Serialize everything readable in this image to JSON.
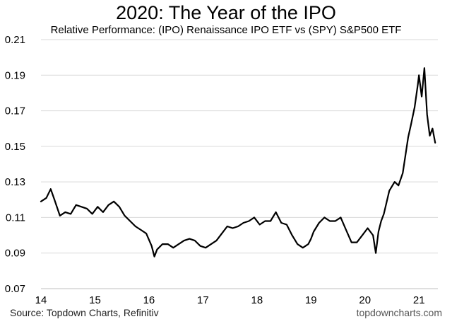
{
  "chart_data": {
    "type": "line",
    "title": "2020: The Year of the IPO",
    "subtitle": "Relative Performance: (IPO) Renaissance IPO ETF vs (SPY) S&P500 ETF",
    "xlabel": "",
    "ylabel": "",
    "ylim": [
      0.07,
      0.21
    ],
    "yticks": [
      "0.21",
      "0.19",
      "0.17",
      "0.15",
      "0.13",
      "0.11",
      "0.09",
      "0.07"
    ],
    "xlim": [
      14.0,
      21.35
    ],
    "xticks": [
      "14",
      "15",
      "16",
      "17",
      "18",
      "19",
      "20",
      "21"
    ],
    "grid": "horizontal",
    "series": [
      {
        "x": [
          14.0,
          14.1,
          14.18,
          14.25,
          14.35,
          14.45,
          14.55,
          14.65,
          14.75,
          14.85,
          14.95,
          15.05,
          15.15,
          15.25,
          15.35,
          15.45,
          15.55,
          15.65,
          15.75,
          15.85,
          15.95,
          16.05,
          16.1,
          16.15,
          16.25,
          16.35,
          16.45,
          16.55,
          16.65,
          16.75,
          16.85,
          16.95,
          17.05,
          17.15,
          17.25,
          17.35,
          17.45,
          17.55,
          17.65,
          17.75,
          17.85,
          17.95,
          18.05,
          18.15,
          18.25,
          18.35,
          18.45,
          18.55,
          18.65,
          18.75,
          18.85,
          18.95,
          19.0,
          19.05,
          19.15,
          19.25,
          19.35,
          19.45,
          19.55,
          19.65,
          19.75,
          19.85,
          19.95,
          20.05,
          20.15,
          20.2,
          20.25,
          20.3,
          20.35,
          20.45,
          20.55,
          20.62,
          20.7,
          20.75,
          20.8,
          20.85,
          20.92,
          20.98,
          21.0,
          21.05,
          21.1,
          21.15,
          21.2,
          21.25,
          21.3
        ],
        "y": [
          0.119,
          0.121,
          0.126,
          0.12,
          0.111,
          0.113,
          0.112,
          0.117,
          0.116,
          0.115,
          0.112,
          0.116,
          0.113,
          0.117,
          0.119,
          0.116,
          0.111,
          0.108,
          0.105,
          0.103,
          0.101,
          0.094,
          0.088,
          0.092,
          0.095,
          0.095,
          0.093,
          0.095,
          0.097,
          0.098,
          0.097,
          0.094,
          0.093,
          0.095,
          0.097,
          0.101,
          0.105,
          0.104,
          0.105,
          0.107,
          0.108,
          0.11,
          0.106,
          0.108,
          0.108,
          0.113,
          0.107,
          0.106,
          0.1,
          0.095,
          0.093,
          0.095,
          0.098,
          0.102,
          0.107,
          0.11,
          0.108,
          0.108,
          0.11,
          0.103,
          0.096,
          0.096,
          0.1,
          0.104,
          0.1,
          0.09,
          0.102,
          0.108,
          0.112,
          0.125,
          0.13,
          0.128,
          0.135,
          0.145,
          0.155,
          0.162,
          0.172,
          0.185,
          0.19,
          0.178,
          0.194,
          0.168,
          0.156,
          0.16,
          0.152
        ]
      }
    ]
  },
  "footer": {
    "source": "Source: Topdown Charts, Refinitiv",
    "brand": "topdowncharts.com"
  },
  "colors": {
    "line": "#000000",
    "grid": "#d9d9d9",
    "axis": "#bfbfbf"
  }
}
